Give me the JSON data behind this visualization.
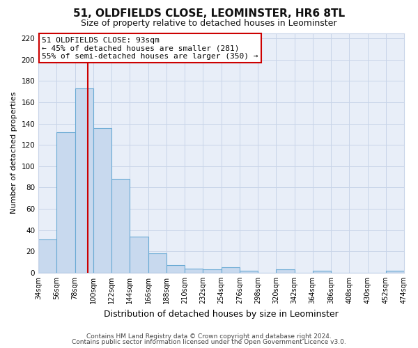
{
  "title": "51, OLDFIELDS CLOSE, LEOMINSTER, HR6 8TL",
  "subtitle": "Size of property relative to detached houses in Leominster",
  "xlabel": "Distribution of detached houses by size in Leominster",
  "ylabel": "Number of detached properties",
  "footnote1": "Contains HM Land Registry data © Crown copyright and database right 2024.",
  "footnote2": "Contains public sector information licensed under the Open Government Licence v3.0.",
  "bin_edges": [
    34,
    56,
    78,
    100,
    122,
    144,
    166,
    188,
    210,
    232,
    254,
    276,
    298,
    320,
    342,
    364,
    386,
    408,
    430,
    452,
    474
  ],
  "bar_heights": [
    31,
    132,
    173,
    136,
    88,
    34,
    18,
    7,
    4,
    3,
    5,
    2,
    0,
    3,
    0,
    2,
    0,
    0,
    0,
    2
  ],
  "bar_color": "#c8d9ee",
  "bar_edge_color": "#6aaad4",
  "grid_color": "#c8d4e8",
  "background_color": "#ffffff",
  "plot_bg_color": "#e8eef8",
  "vline_x": 93,
  "vline_color": "#cc0000",
  "annotation_title": "51 OLDFIELDS CLOSE: 93sqm",
  "annotation_line1": "← 45% of detached houses are smaller (281)",
  "annotation_line2": "55% of semi-detached houses are larger (350) →",
  "annotation_box_facecolor": "#ffffff",
  "annotation_box_edgecolor": "#cc0000",
  "ylim": [
    0,
    225
  ],
  "yticks": [
    0,
    20,
    40,
    60,
    80,
    100,
    120,
    140,
    160,
    180,
    200,
    220
  ],
  "tick_labels": [
    "34sqm",
    "56sqm",
    "78sqm",
    "100sqm",
    "122sqm",
    "144sqm",
    "166sqm",
    "188sqm",
    "210sqm",
    "232sqm",
    "254sqm",
    "276sqm",
    "298sqm",
    "320sqm",
    "342sqm",
    "364sqm",
    "386sqm",
    "408sqm",
    "430sqm",
    "452sqm",
    "474sqm"
  ],
  "title_fontsize": 11,
  "subtitle_fontsize": 9,
  "ylabel_fontsize": 8,
  "xlabel_fontsize": 9,
  "footnote_fontsize": 6.5
}
